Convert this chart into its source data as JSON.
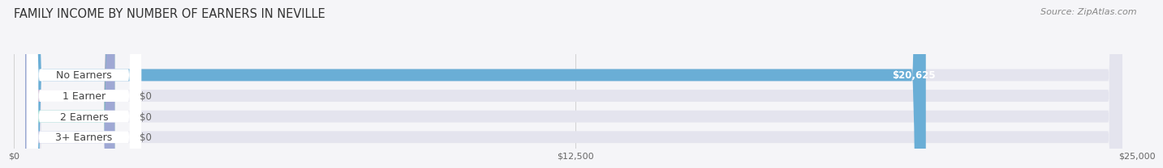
{
  "title": "FAMILY INCOME BY NUMBER OF EARNERS IN NEVILLE",
  "source": "Source: ZipAtlas.com",
  "categories": [
    "No Earners",
    "1 Earner",
    "2 Earners",
    "3+ Earners"
  ],
  "values": [
    20625,
    0,
    0,
    0
  ],
  "max_value": 25000,
  "bar_colors": [
    "#6aaed6",
    "#b59bbf",
    "#5bbfb5",
    "#9fa8d4"
  ],
  "bar_bg_color": "#e4e4ee",
  "tick_labels": [
    "$0",
    "$12,500",
    "$25,000"
  ],
  "tick_values": [
    0,
    12500,
    25000
  ],
  "value_labels": [
    "$20,625",
    "$0",
    "$0",
    "$0"
  ],
  "background_color": "#f5f5f8",
  "title_fontsize": 10.5,
  "source_fontsize": 8,
  "label_fontsize": 9,
  "value_fontsize": 8.5
}
